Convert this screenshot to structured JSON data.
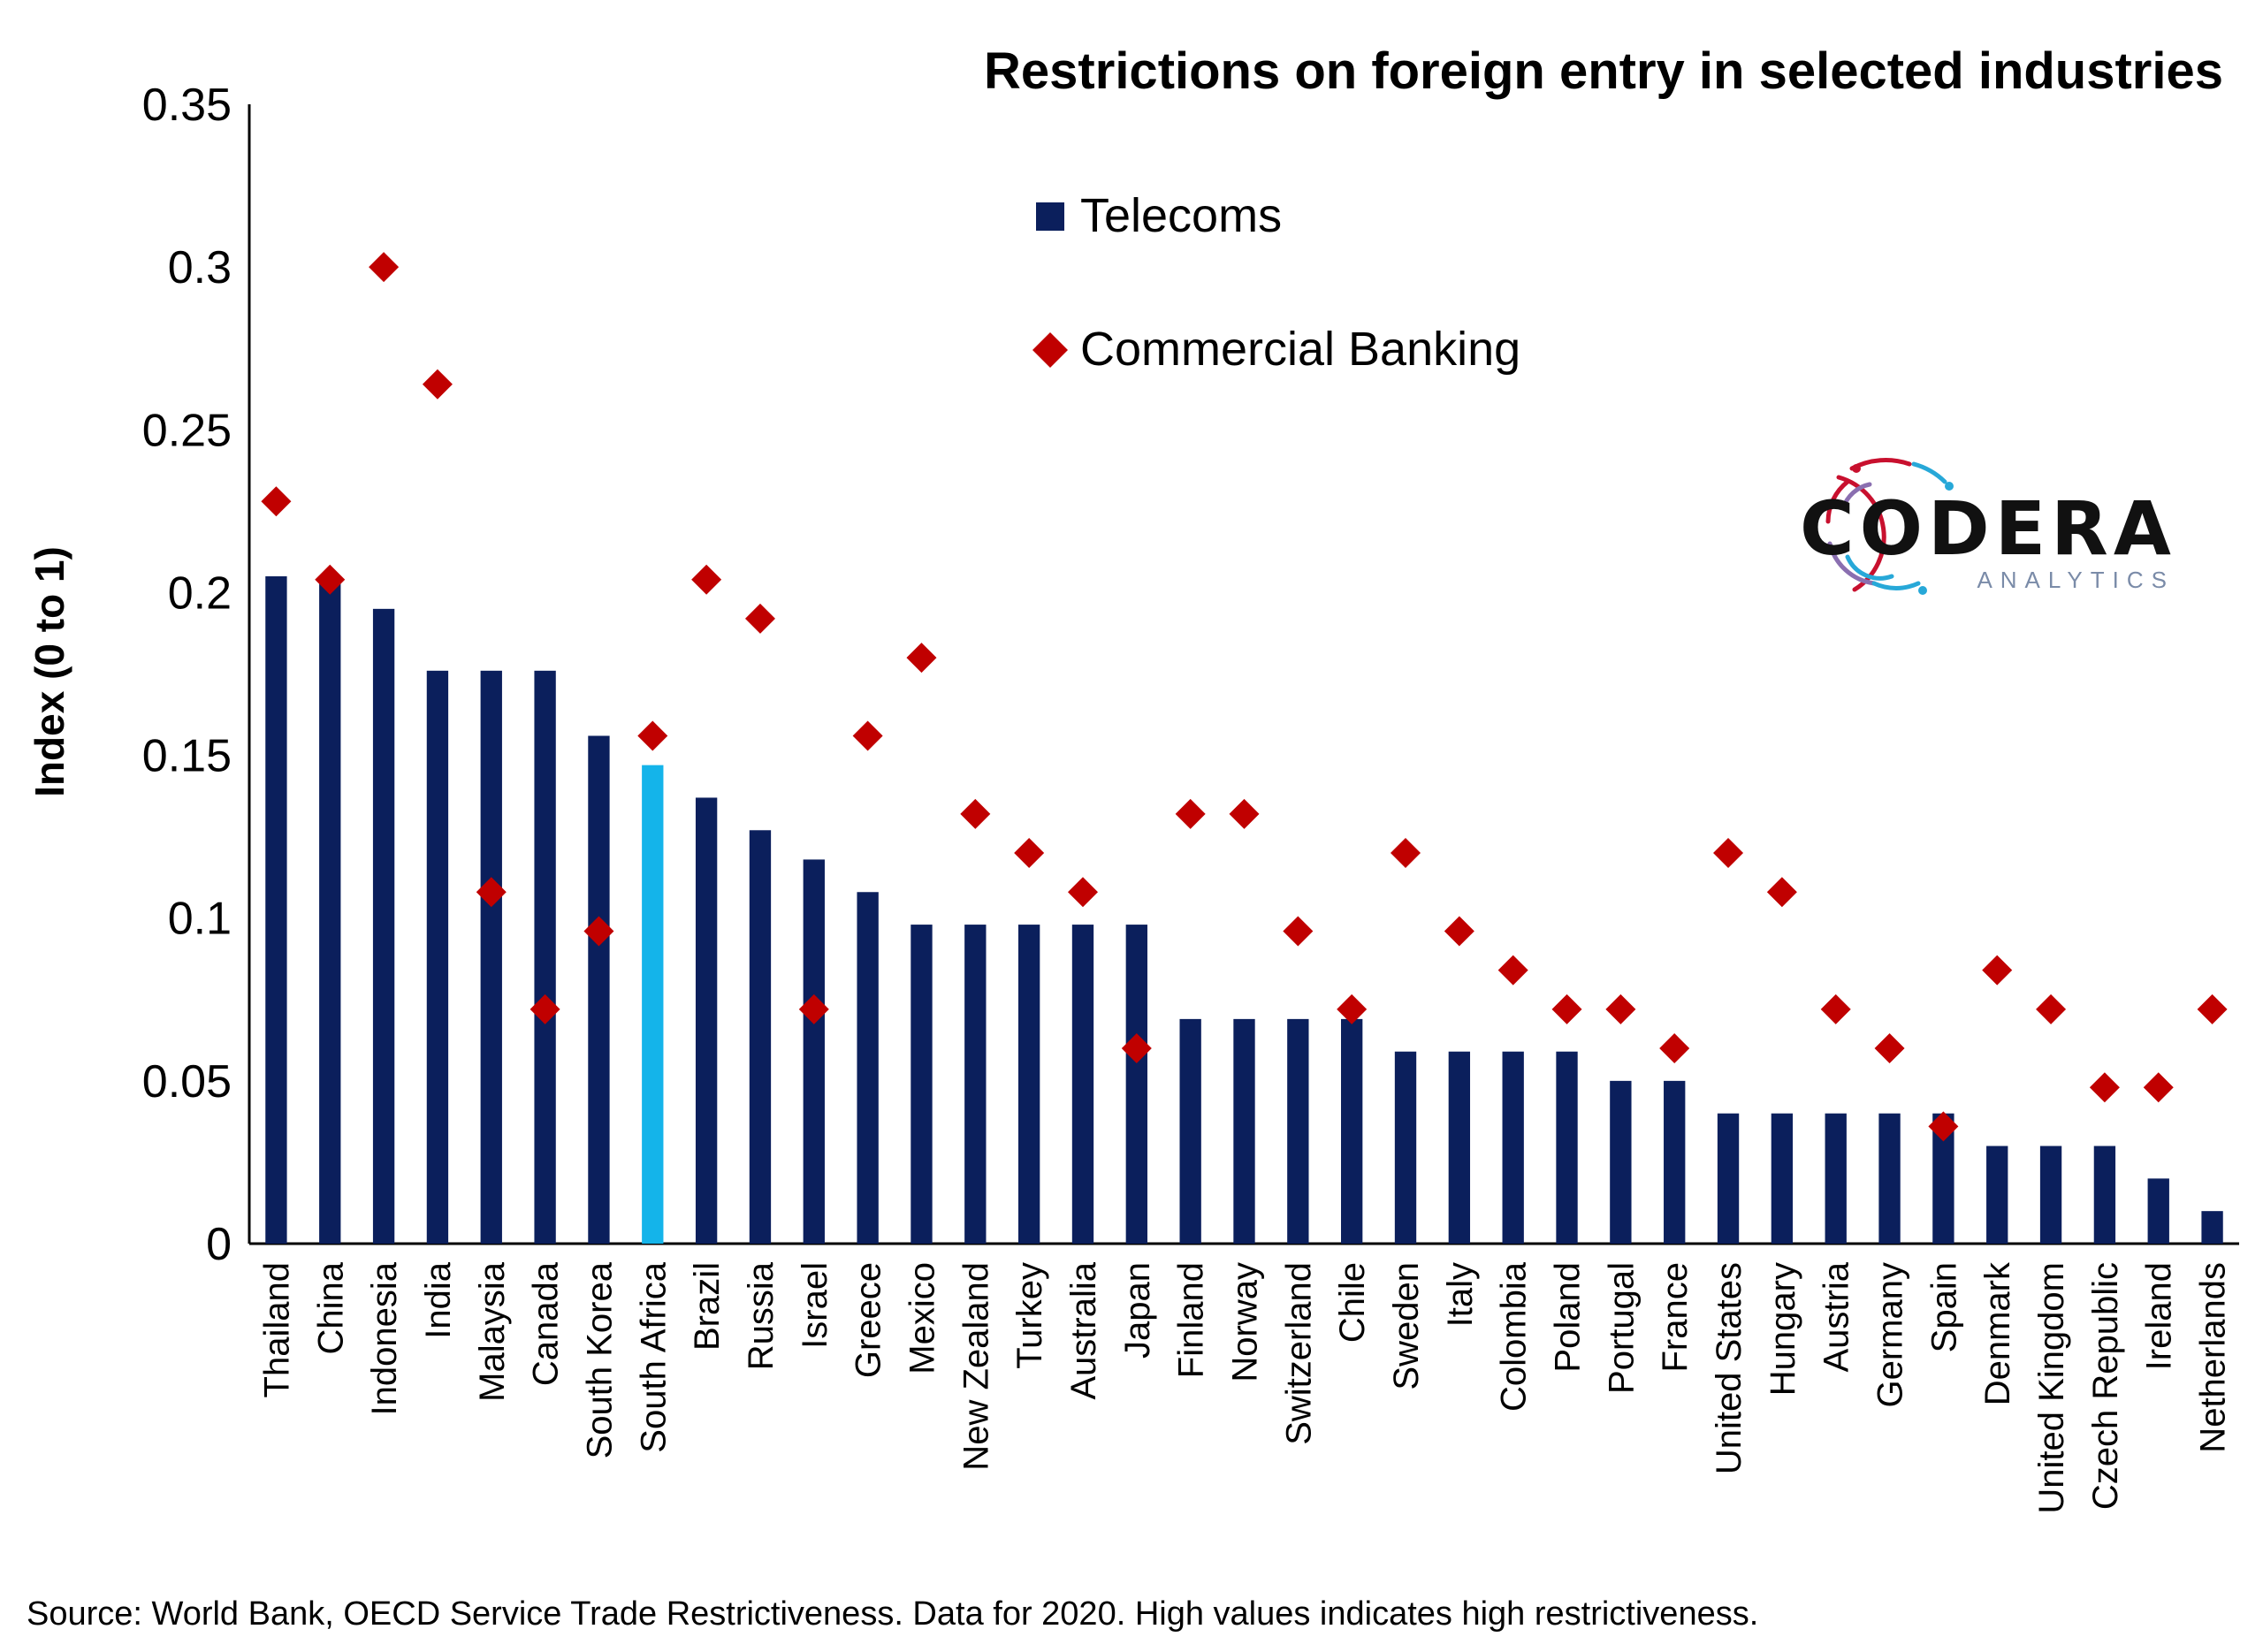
{
  "chart_data": {
    "type": "bar",
    "title": "Restrictions on foreign entry in selected industries",
    "ylabel": "Index (0 to 1)",
    "xlabel": "",
    "ylim": [
      0,
      0.35
    ],
    "yticks": [
      "0",
      "0.05",
      "0.1",
      "0.15",
      "0.2",
      "0.25",
      "0.3",
      "0.35"
    ],
    "grid": false,
    "legend_position": "top-center",
    "categories": [
      "Thailand",
      "China",
      "Indonesia",
      "India",
      "Malaysia",
      "Canada",
      "South Korea",
      "South Africa",
      "Brazil",
      "Russia",
      "Israel",
      "Greece",
      "Mexico",
      "New Zealand",
      "Turkey",
      "Australia",
      "Japan",
      "Finland",
      "Norway",
      "Switzerland",
      "Chile",
      "Sweden",
      "Italy",
      "Colombia",
      "Poland",
      "Portugal",
      "France",
      "United States",
      "Hungary",
      "Austria",
      "Germany",
      "Spain",
      "Denmark",
      "United Kingdom",
      "Czech Republic",
      "Ireland",
      "Netherlands"
    ],
    "highlight_category": "South Africa",
    "series": [
      {
        "name": "Telecoms",
        "type": "bar",
        "color": "#0b1f5c",
        "highlight_color": "#14b4ea",
        "values": [
          0.205,
          0.205,
          0.195,
          0.176,
          0.176,
          0.176,
          0.156,
          0.147,
          0.137,
          0.127,
          0.118,
          0.108,
          0.098,
          0.098,
          0.098,
          0.098,
          0.098,
          0.069,
          0.069,
          0.069,
          0.069,
          0.059,
          0.059,
          0.059,
          0.059,
          0.05,
          0.05,
          0.04,
          0.04,
          0.04,
          0.04,
          0.04,
          0.03,
          0.03,
          0.03,
          0.02,
          0.01
        ]
      },
      {
        "name": "Commercial Banking",
        "type": "scatter",
        "marker": "diamond",
        "color": "#c00000",
        "values": [
          0.228,
          0.204,
          0.3,
          0.264,
          0.108,
          0.072,
          0.096,
          0.156,
          0.204,
          0.192,
          0.072,
          0.156,
          0.18,
          0.132,
          0.12,
          0.108,
          0.06,
          0.132,
          0.132,
          0.096,
          0.072,
          0.12,
          0.096,
          0.084,
          0.072,
          0.072,
          0.06,
          0.12,
          0.108,
          0.072,
          0.06,
          0.036,
          0.084,
          0.072,
          0.048,
          0.048,
          0.072
        ]
      }
    ]
  },
  "logo": {
    "main": "CODERA",
    "sub": "ANALYTICS",
    "colors": [
      "#c8102e",
      "#8a6fb0",
      "#27a8d8"
    ]
  },
  "source": "Source: World Bank, OECD Service Trade Restrictiveness. Data for 2020. High values indicates high restrictiveness."
}
